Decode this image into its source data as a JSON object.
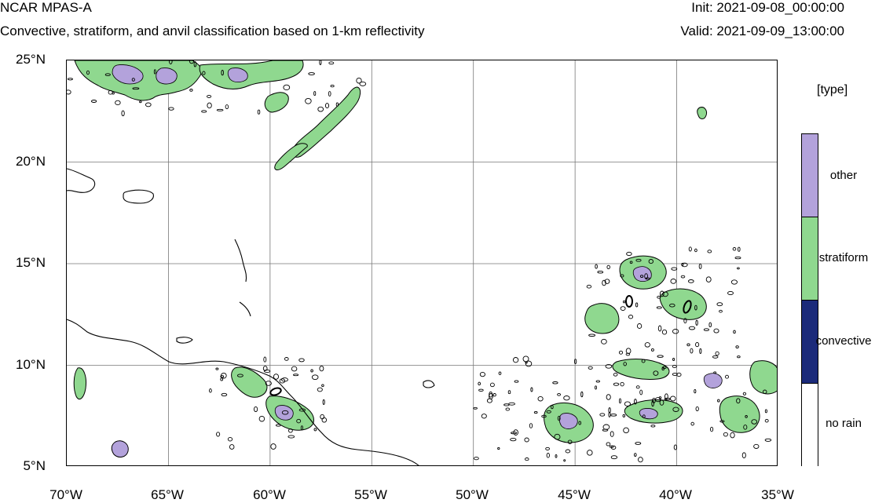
{
  "header": {
    "model": "NCAR MPAS-A",
    "subtitle": "Convective, stratiform, and anvil classification based on 1-km reflectivity",
    "init": "Init: 2021-09-08_00:00:00",
    "valid": "Valid: 2021-09-09_13:00:00"
  },
  "axes": {
    "lat_labels": [
      "25°N",
      "20°N",
      "15°N",
      "10°N",
      "5°N"
    ],
    "lon_labels": [
      "70°W",
      "65°W",
      "60°W",
      "55°W",
      "50°W",
      "45°W",
      "40°W",
      "35°W"
    ],
    "lat_range": [
      5,
      25
    ],
    "lon_range": [
      -70,
      -35
    ]
  },
  "legend": {
    "title": "[type]",
    "categories": [
      {
        "label": "other",
        "color": "#b3a2db"
      },
      {
        "label": "stratiform",
        "color": "#8fd88f"
      },
      {
        "label": "convective",
        "color": "#1b2a7a"
      },
      {
        "label": "no rain",
        "color": "#ffffff"
      }
    ]
  },
  "map": {
    "gridlines": true,
    "coastline_color": "#000000",
    "colors": {
      "other": "#b3a2db",
      "stratiform": "#8fd88f",
      "convective": "#1b2a7a"
    }
  }
}
